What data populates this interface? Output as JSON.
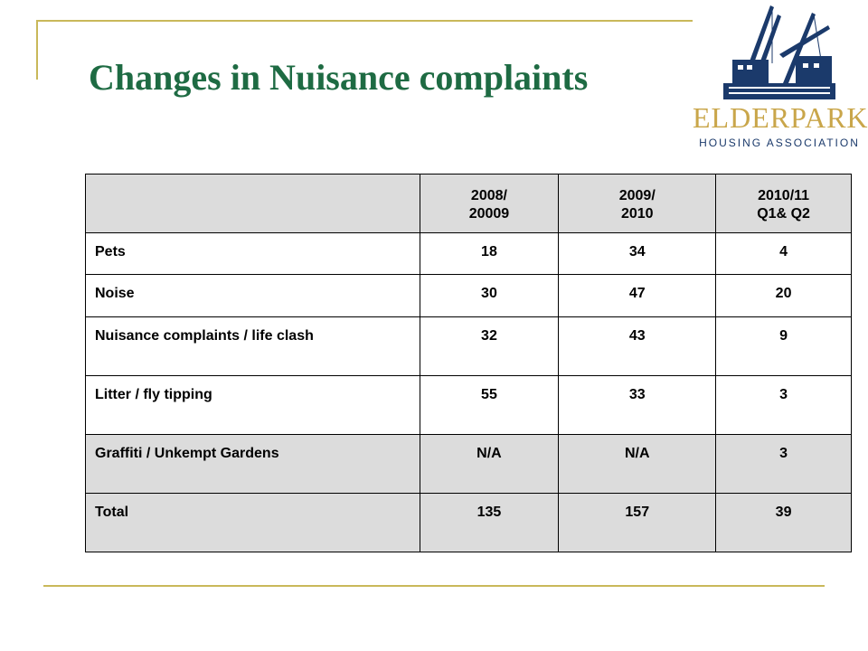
{
  "title": "Changes in Nuisance complaints",
  "logo": {
    "name": "ELDERPARK",
    "subtitle": "HOUSING ASSOCIATION",
    "icon": "crane-shipyard-icon",
    "colors": {
      "navy": "#1b3a6b",
      "gold": "#c9a64a"
    }
  },
  "table": {
    "header": {
      "blank": "",
      "col1": [
        "2008/",
        "20009"
      ],
      "col2": [
        "2009/",
        "2010"
      ],
      "col3": [
        "2010/11",
        "Q1& Q2"
      ]
    },
    "rows": [
      {
        "label": "Pets",
        "v1": "18",
        "v2": "34",
        "v3": "4"
      },
      {
        "label": "Noise",
        "v1": "30",
        "v2": "47",
        "v3": "20"
      },
      {
        "label": "Nuisance complaints / life clash",
        "v1": "32",
        "v2": "43",
        "v3": "9"
      },
      {
        "label": "Litter / fly tipping",
        "v1": "55",
        "v2": "33",
        "v3": "3"
      },
      {
        "label": "Graffiti / Unkempt Gardens",
        "v1": "N/A",
        "v2": "N/A",
        "v3": "3"
      },
      {
        "label": "Total",
        "v1": "135",
        "v2": "157",
        "v3": "39"
      }
    ]
  },
  "colors": {
    "title": "#1e6b43",
    "rule": "#c9b85a",
    "row_shade": "#dcdcdc"
  }
}
